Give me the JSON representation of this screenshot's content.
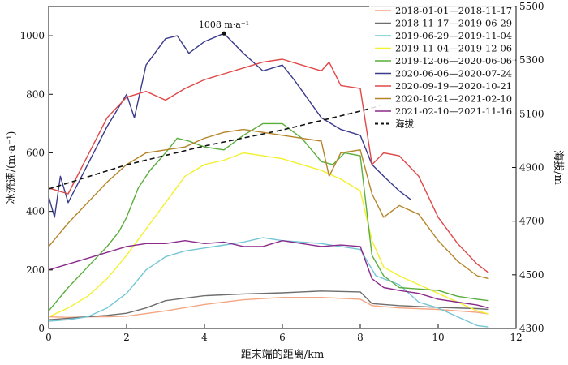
{
  "chart_data": {
    "type": "line",
    "xlabel": "距末端的距离/km",
    "ylabel": "冰流速/(m·a⁻¹)",
    "y2label": "海拔/m",
    "xlim": [
      0,
      12
    ],
    "ylim": [
      0,
      1100
    ],
    "y2lim": [
      4300,
      5500
    ],
    "xticks": [
      "0",
      "2",
      "4",
      "6",
      "8",
      "10",
      "12"
    ],
    "yticks": [
      "0",
      "200",
      "400",
      "600",
      "800",
      "1000"
    ],
    "y2ticks": [
      "4300",
      "4500",
      "4700",
      "4900",
      "5100",
      "5300",
      "5500"
    ],
    "grid": false,
    "legend_position": "top-right",
    "annotation": {
      "text": "1008 m·a⁻¹",
      "x": 4.5,
      "y": 1008
    },
    "series": [
      {
        "name": "2018-01-01—2018-11-17",
        "color": "#f4a582",
        "x": [
          0,
          0.5,
          1,
          1.5,
          2,
          3,
          4,
          5,
          6,
          7,
          8,
          8.3,
          9,
          10,
          11,
          11.3
        ],
        "values": [
          40,
          38,
          40,
          40,
          42,
          60,
          82,
          98,
          106,
          106,
          100,
          78,
          70,
          65,
          55,
          50
        ]
      },
      {
        "name": "2018-11-17—2019-06-29",
        "color": "#6e6e6e",
        "x": [
          0,
          0.5,
          1,
          1.5,
          2,
          2.5,
          3,
          4,
          5,
          6,
          7,
          8,
          8.3,
          9,
          10,
          11,
          11.3
        ],
        "values": [
          30,
          35,
          40,
          45,
          52,
          70,
          95,
          112,
          118,
          122,
          128,
          125,
          85,
          78,
          72,
          68,
          65
        ]
      },
      {
        "name": "2019-06-29—2019-11-04",
        "color": "#74c6d6",
        "x": [
          0,
          0.5,
          1,
          1.5,
          2,
          2.5,
          3,
          3.5,
          4,
          5,
          5.5,
          6,
          7,
          8,
          8.4,
          9,
          9.5,
          10,
          10.5,
          11,
          11.3
        ],
        "values": [
          25,
          30,
          40,
          70,
          120,
          200,
          245,
          265,
          275,
          295,
          310,
          300,
          290,
          270,
          180,
          150,
          90,
          70,
          40,
          10,
          5
        ]
      },
      {
        "name": "2019-11-04—2019-12-06",
        "color": "#f3f02e",
        "x": [
          0,
          0.5,
          1,
          1.5,
          2,
          2.5,
          3,
          3.5,
          4,
          4.5,
          5,
          5.5,
          6,
          6.5,
          7,
          7.5,
          8,
          8.3,
          8.6,
          9,
          9.5,
          10,
          10.5,
          11,
          11.3
        ],
        "values": [
          40,
          70,
          110,
          170,
          250,
          340,
          430,
          520,
          560,
          575,
          600,
          590,
          580,
          560,
          540,
          510,
          470,
          300,
          210,
          180,
          150,
          120,
          90,
          60,
          50
        ]
      },
      {
        "name": "2019-12-06—2020-06-06",
        "color": "#5aae3c",
        "x": [
          0,
          0.5,
          1,
          1.5,
          1.8,
          2,
          2.3,
          2.6,
          3,
          3.3,
          3.6,
          4,
          4.5,
          5,
          5.5,
          6,
          6.5,
          7,
          7.3,
          7.6,
          8,
          8.3,
          8.6,
          9,
          10,
          10.5,
          11,
          11.3
        ],
        "values": [
          60,
          140,
          210,
          280,
          330,
          380,
          480,
          540,
          600,
          650,
          640,
          620,
          610,
          660,
          700,
          700,
          650,
          570,
          560,
          600,
          590,
          250,
          180,
          140,
          130,
          110,
          100,
          95
        ]
      },
      {
        "name": "2020-06-06—2020-07-24",
        "color": "#3b3b8c",
        "x": [
          0,
          0.15,
          0.3,
          0.5,
          1,
          1.5,
          2,
          2.2,
          2.5,
          3,
          3.3,
          3.6,
          4,
          4.5,
          5,
          5.5,
          6,
          6.3,
          7,
          7.5,
          8,
          8.3,
          8.6,
          9,
          9.3
        ],
        "values": [
          450,
          380,
          520,
          430,
          560,
          690,
          800,
          720,
          900,
          990,
          1000,
          940,
          980,
          1008,
          940,
          880,
          900,
          850,
          720,
          680,
          660,
          560,
          520,
          470,
          440
        ]
      },
      {
        "name": "2020-09-19—2020-10-21",
        "color": "#e04848",
        "x": [
          0,
          0.5,
          1,
          1.5,
          2,
          2.5,
          3,
          3.5,
          4,
          4.5,
          5,
          5.5,
          6,
          6.5,
          7,
          7.2,
          7.5,
          8,
          8.3,
          8.6,
          9,
          9.5,
          10,
          10.5,
          11,
          11.3
        ],
        "values": [
          480,
          460,
          590,
          720,
          790,
          810,
          780,
          820,
          850,
          870,
          890,
          910,
          920,
          900,
          880,
          910,
          830,
          820,
          560,
          600,
          590,
          520,
          380,
          290,
          220,
          190
        ]
      },
      {
        "name": "2020-10-21—2021-02-10",
        "color": "#b5852a",
        "x": [
          0,
          0.5,
          1,
          1.5,
          2,
          2.5,
          3,
          3.5,
          4,
          4.5,
          5,
          5.5,
          6,
          6.5,
          7,
          7.2,
          7.5,
          8,
          8.3,
          8.6,
          9,
          9.5,
          10,
          10.5,
          11,
          11.3
        ],
        "values": [
          280,
          360,
          430,
          500,
          560,
          600,
          610,
          620,
          650,
          670,
          680,
          670,
          660,
          650,
          640,
          520,
          600,
          610,
          460,
          380,
          420,
          390,
          300,
          230,
          180,
          170
        ]
      },
      {
        "name": "2021-02-10—2021-11-16",
        "color": "#8a2a8a",
        "x": [
          0,
          0.5,
          1,
          1.5,
          2,
          2.5,
          3,
          3.5,
          4,
          4.5,
          5,
          5.5,
          6,
          6.5,
          7,
          7.5,
          8,
          8.3,
          8.6,
          9,
          9.5,
          10,
          10.5,
          11,
          11.3
        ],
        "values": [
          200,
          220,
          240,
          260,
          280,
          290,
          290,
          300,
          290,
          295,
          280,
          280,
          300,
          290,
          280,
          285,
          280,
          170,
          140,
          130,
          120,
          100,
          90,
          80,
          70
        ]
      },
      {
        "name": "海拔",
        "color": "#111111",
        "dashed": true,
        "axis": "right",
        "x": [
          0,
          2,
          4,
          6,
          8,
          8.5
        ],
        "values": [
          4820,
          4910,
          4980,
          5040,
          5110,
          5130
        ]
      }
    ]
  }
}
